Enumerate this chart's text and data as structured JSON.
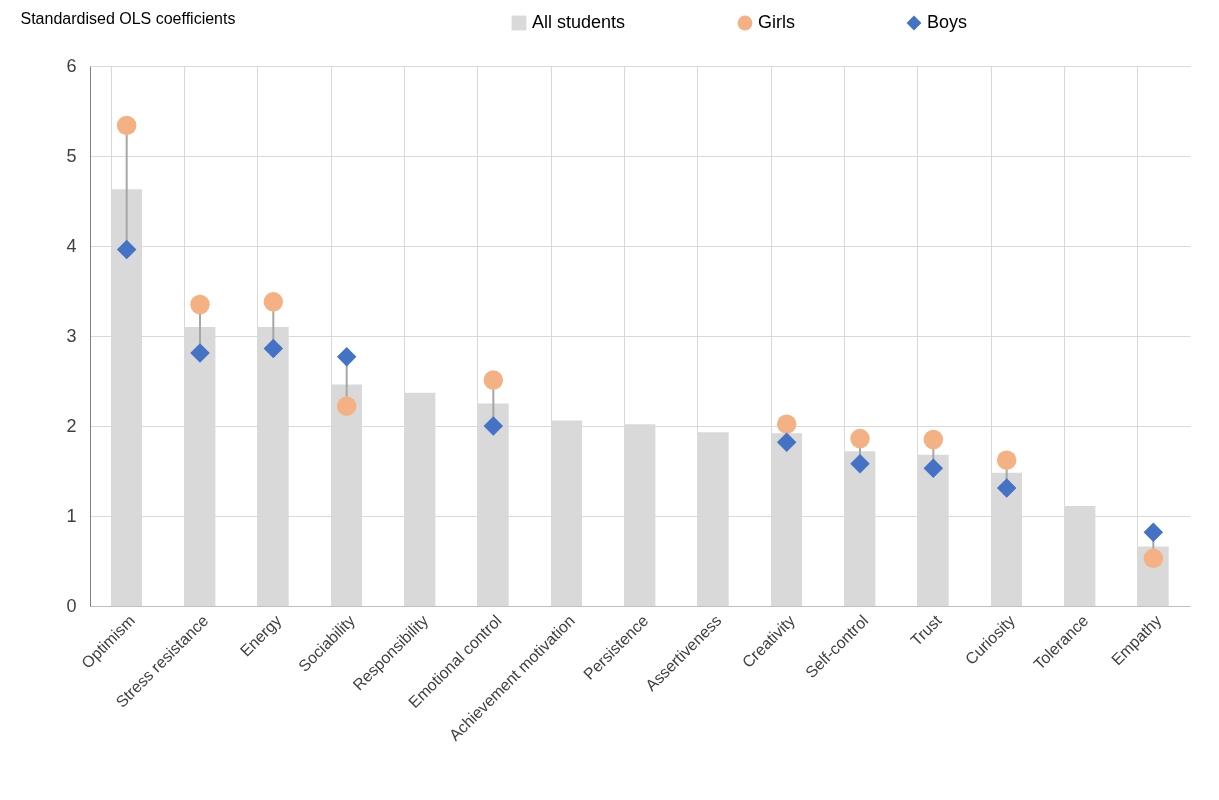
{
  "chart_data": {
    "type": "bar",
    "ylabel": "Standardised OLS coefficients",
    "categories": [
      "Optimism",
      "Stress resistance",
      "Energy",
      "Sociability",
      "Responsibility",
      "Emotional control",
      "Achievement motivation",
      "Persistence",
      "Assertiveness",
      "Creativity",
      "Self-control",
      "Trust",
      "Curiosity",
      "Tolerance",
      "Empathy"
    ],
    "series": [
      {
        "name": "All students",
        "color": "#d9d9d9",
        "values": [
          4.63,
          3.1,
          3.1,
          2.46,
          2.37,
          2.25,
          2.06,
          2.02,
          1.93,
          1.92,
          1.72,
          1.68,
          1.48,
          1.11,
          0.66
        ]
      },
      {
        "name": "Girls",
        "type": "scatter",
        "marker": "circle",
        "color": "#f4b183",
        "values": [
          5.34,
          3.35,
          3.38,
          2.22,
          null,
          2.51,
          null,
          null,
          null,
          2.02,
          1.86,
          1.85,
          1.62,
          null,
          0.53
        ]
      },
      {
        "name": "Boys",
        "type": "scatter",
        "marker": "diamond",
        "color": "#4472c4",
        "values": [
          3.96,
          2.81,
          2.86,
          2.77,
          null,
          2.0,
          null,
          null,
          null,
          1.82,
          1.58,
          1.53,
          1.31,
          null,
          0.82
        ]
      }
    ],
    "ylim": [
      0,
      6
    ],
    "yticks": [
      0,
      1,
      2,
      3,
      4,
      5,
      6
    ],
    "grid": true,
    "legend": "top"
  }
}
